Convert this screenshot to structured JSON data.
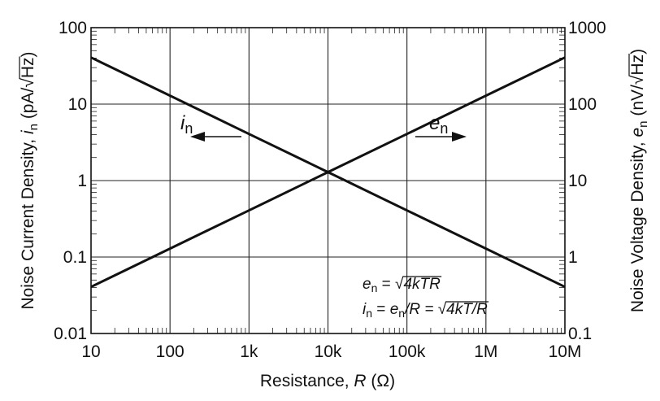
{
  "chart_data": {
    "type": "line",
    "x_scale": "log",
    "y_scale": "log",
    "grid": true,
    "xlim": [
      10,
      10000000
    ],
    "ylim": [
      0.01,
      100
    ],
    "y2lim": [
      0.1,
      1000
    ],
    "x_ticks": [
      10,
      100,
      1000,
      10000,
      100000,
      1000000,
      10000000
    ],
    "x_tick_labels": [
      "10",
      "100",
      "1k",
      "10k",
      "100k",
      "1M",
      "10M"
    ],
    "y_ticks": [
      0.01,
      0.1,
      1,
      10,
      100
    ],
    "y_tick_labels": [
      "0.01",
      "0.1",
      "1",
      "10",
      "100"
    ],
    "y2_ticks": [
      0.1,
      1,
      10,
      100,
      1000
    ],
    "y2_tick_labels": [
      "0.1",
      "1",
      "10",
      "100",
      "1000"
    ],
    "xlabel": {
      "pre": "Resistance, ",
      "var": "R",
      "post": " (Ω)"
    },
    "ylabel": {
      "pre": "Noise Current Density, ",
      "var": "i",
      "sub": "n",
      "unit_open": " (pA/",
      "unit_root": "Hz",
      "unit_close": ")"
    },
    "y2label": {
      "pre": "Noise Voltage Density, ",
      "var": "e",
      "sub": "n",
      "unit_open": " (nV/",
      "unit_root": "Hz",
      "unit_close": ")"
    },
    "series": [
      {
        "name": "i_n",
        "axis": "left",
        "label": {
          "var": "i",
          "sub": "n"
        },
        "arrow": "left",
        "x": [
          10,
          100,
          1000,
          10000,
          100000,
          1000000,
          10000000
        ],
        "y": [
          40.7,
          12.9,
          4.07,
          1.29,
          0.407,
          0.129,
          0.0407
        ]
      },
      {
        "name": "e_n",
        "axis": "right",
        "label": {
          "var": "e",
          "sub": "n"
        },
        "arrow": "right",
        "x": [
          10,
          100,
          1000,
          10000,
          100000,
          1000000,
          10000000
        ],
        "y": [
          0.407,
          1.29,
          4.07,
          12.9,
          40.7,
          129,
          407
        ]
      }
    ],
    "annotations": [
      {
        "lhs_var": "e",
        "lhs_sub": "n",
        "eq": " = ",
        "root": "4kTR"
      },
      {
        "lhs_var": "i",
        "lhs_sub": "n",
        "eq": " = ",
        "mid_var": "e",
        "mid_sub": "n",
        "mid": "/R = ",
        "root": "4kT/R"
      }
    ]
  }
}
